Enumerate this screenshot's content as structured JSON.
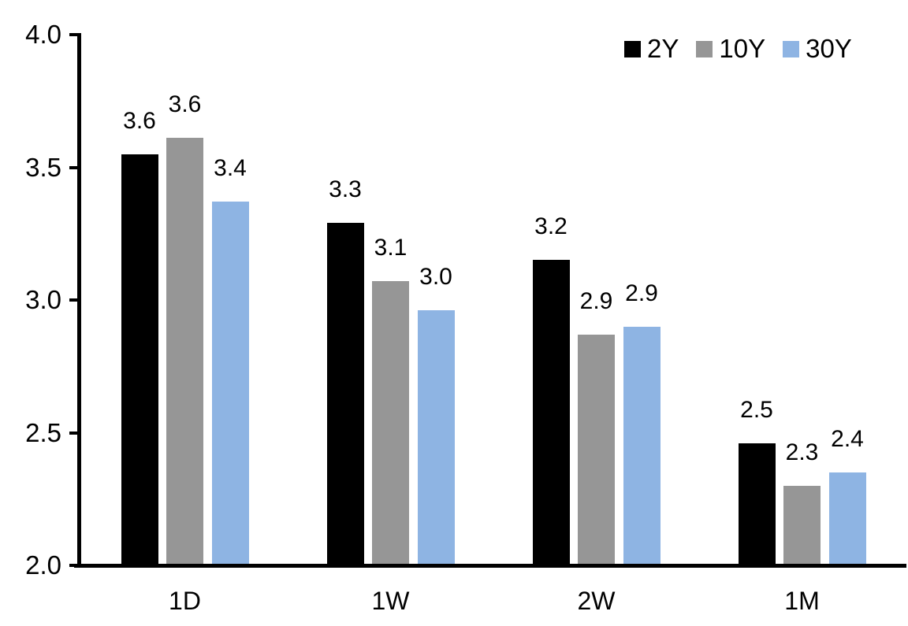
{
  "chart_data": {
    "type": "bar",
    "title": "",
    "xlabel": "",
    "ylabel": "",
    "categories": [
      "1D",
      "1W",
      "2W",
      "1M"
    ],
    "series": [
      {
        "name": "2Y",
        "color": "#000000",
        "values": [
          3.55,
          3.29,
          3.15,
          2.46
        ],
        "labels": [
          "3.6",
          "3.3",
          "3.2",
          "2.5"
        ]
      },
      {
        "name": "10Y",
        "color": "#969696",
        "values": [
          3.61,
          3.07,
          2.87,
          2.3
        ],
        "labels": [
          "3.6",
          "3.1",
          "2.9",
          "2.3"
        ]
      },
      {
        "name": "30Y",
        "color": "#8EB4E3",
        "values": [
          3.37,
          2.96,
          2.9,
          2.35
        ],
        "labels": [
          "3.4",
          "3.0",
          "2.9",
          "2.4"
        ]
      }
    ],
    "ylim": [
      2.0,
      4.0
    ],
    "yticks": [
      2.0,
      2.5,
      3.0,
      3.5,
      4.0
    ],
    "ytick_labels": [
      "2.0",
      "2.5",
      "3.0",
      "3.5",
      "4.0"
    ],
    "grid": false,
    "legend_position": "top-right",
    "axis_color": "#000000",
    "background_color": "#FFFFFF",
    "bar_value_labels_shown": true
  }
}
